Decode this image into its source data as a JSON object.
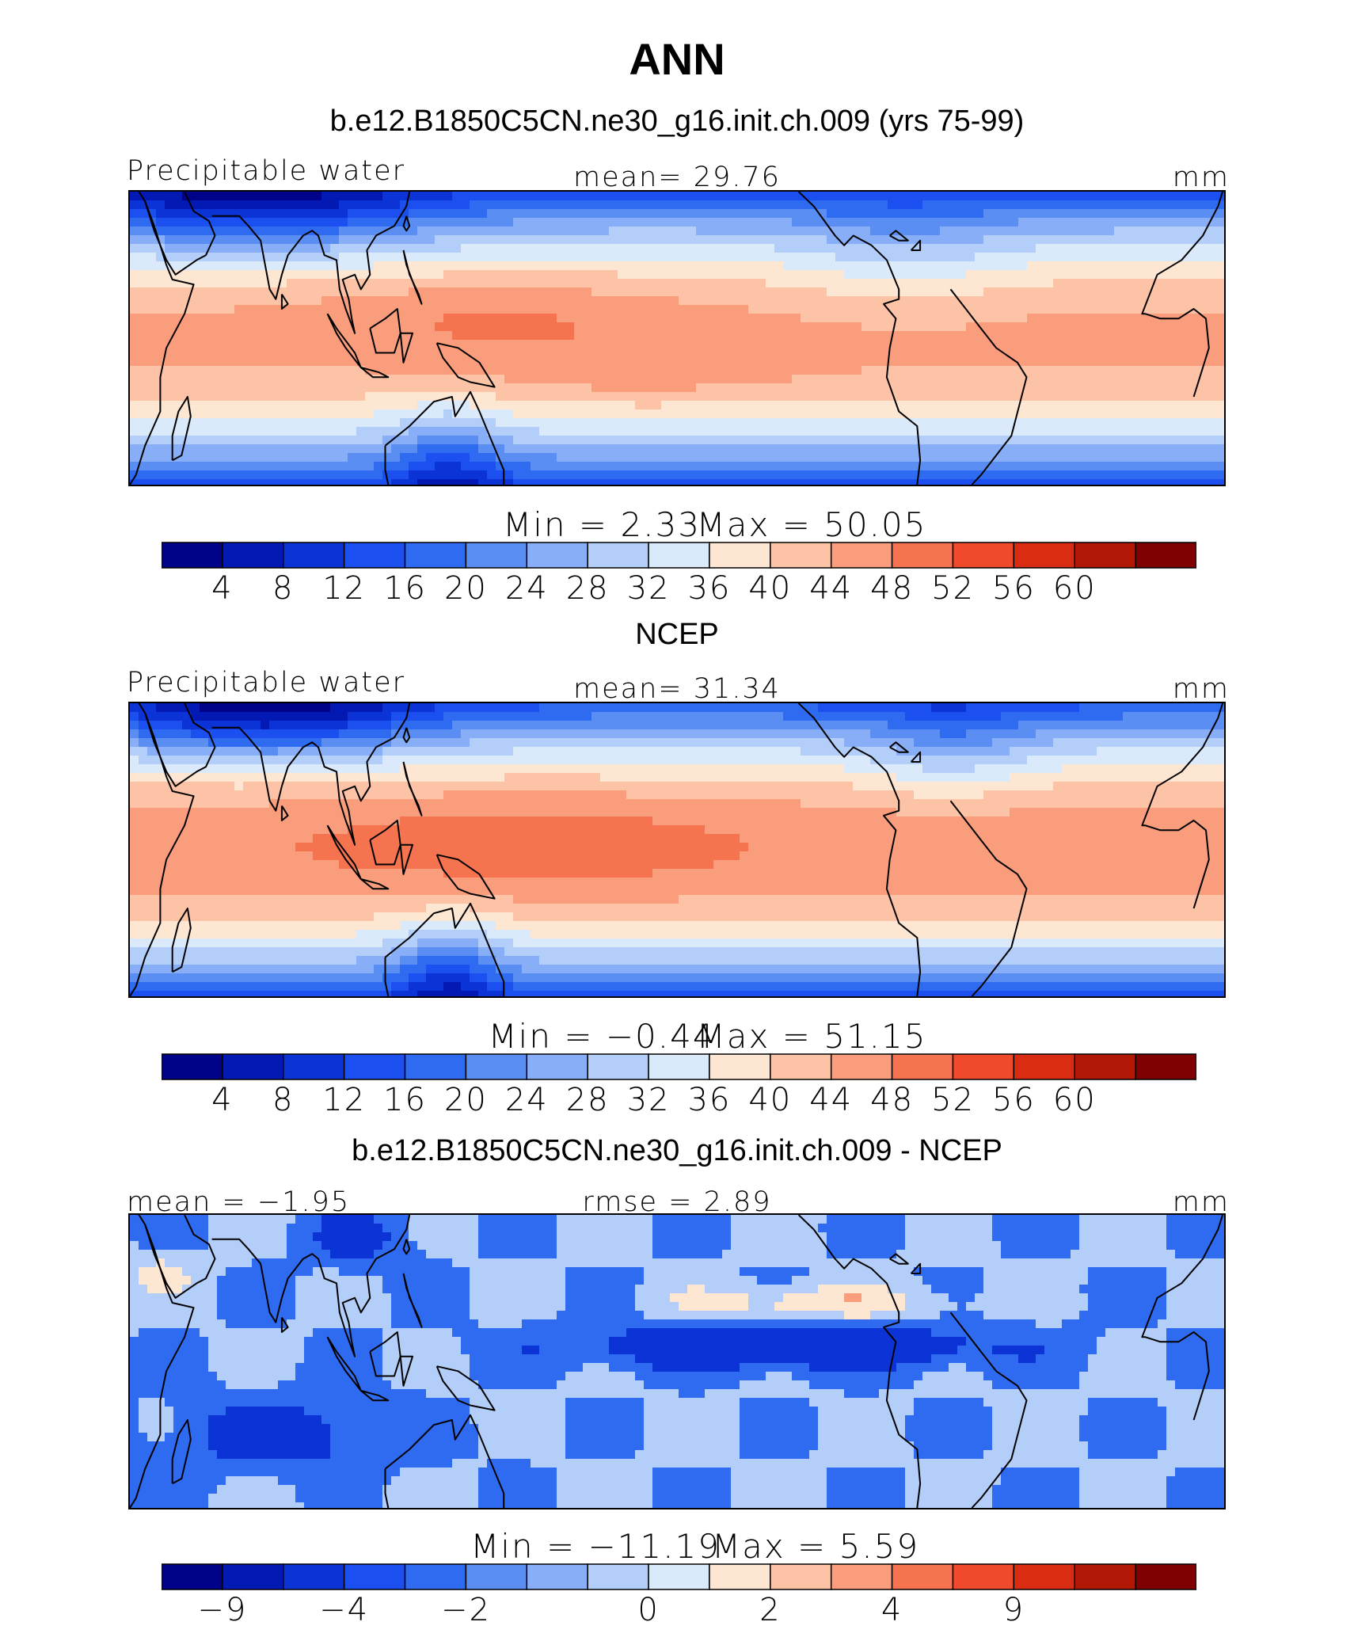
{
  "figure": {
    "title": "ANN"
  },
  "colors": {
    "palette": [
      "#00038a",
      "#0319b4",
      "#0c33d6",
      "#1b4ff0",
      "#2f6bf0",
      "#5a8ef2",
      "#87aef6",
      "#b3cef9",
      "#daeafb",
      "#fde6d2",
      "#fcc3a7",
      "#f99d7c",
      "#f5734e",
      "#ee4a2b",
      "#d92c12",
      "#b21806",
      "#7f0000"
    ],
    "coastline": "#000000"
  },
  "chart_data": [
    {
      "type": "heatmap",
      "title": "b.e12.B1850C5CN.ne30_g16.init.ch.009 (yrs 75-99)",
      "left_label": "Precipitable water",
      "center_label": "mean=  29.76",
      "right_label": "mm",
      "field": "model",
      "mean": 29.76,
      "units": "mm",
      "min_label": "Min  =     2.33",
      "max_label": "Max  =    50.05",
      "min": 2.33,
      "max": 50.05,
      "colorbar_ticks": [
        "4",
        "8",
        "12",
        "16",
        "20",
        "24",
        "28",
        "32",
        "36",
        "40",
        "44",
        "48",
        "52",
        "56",
        "60"
      ],
      "levels": [
        4,
        8,
        12,
        16,
        20,
        24,
        28,
        32,
        36,
        40,
        44,
        48,
        52,
        56,
        60
      ]
    },
    {
      "type": "heatmap",
      "title": "NCEP",
      "left_label": "Precipitable water",
      "center_label": "mean=  31.34",
      "right_label": "mm",
      "field": "obs",
      "mean": 31.34,
      "units": "mm",
      "min_label": "Min  =   −0.44",
      "max_label": "Max  =    51.15",
      "min": -0.44,
      "max": 51.15,
      "colorbar_ticks": [
        "4",
        "8",
        "12",
        "16",
        "20",
        "24",
        "28",
        "32",
        "36",
        "40",
        "44",
        "48",
        "52",
        "56",
        "60"
      ],
      "levels": [
        4,
        8,
        12,
        16,
        20,
        24,
        28,
        32,
        36,
        40,
        44,
        48,
        52,
        56,
        60
      ]
    },
    {
      "type": "heatmap",
      "title": "b.e12.B1850C5CN.ne30_g16.init.ch.009 - NCEP",
      "left_label": "mean =  −1.95",
      "center_label": "rmse =    2.89",
      "right_label": "mm",
      "field": "diff",
      "mean": -1.95,
      "rmse": 2.89,
      "units": "mm",
      "min_label": "Min  = −11.19",
      "max_label": "Max  =     5.59",
      "min": -11.19,
      "max": 5.59,
      "colorbar_ticks": [
        "−9",
        "−4",
        "−2",
        "0",
        "2",
        "4",
        "9"
      ],
      "levels": [
        -9,
        -4,
        -2,
        0,
        2,
        4,
        9
      ]
    }
  ]
}
